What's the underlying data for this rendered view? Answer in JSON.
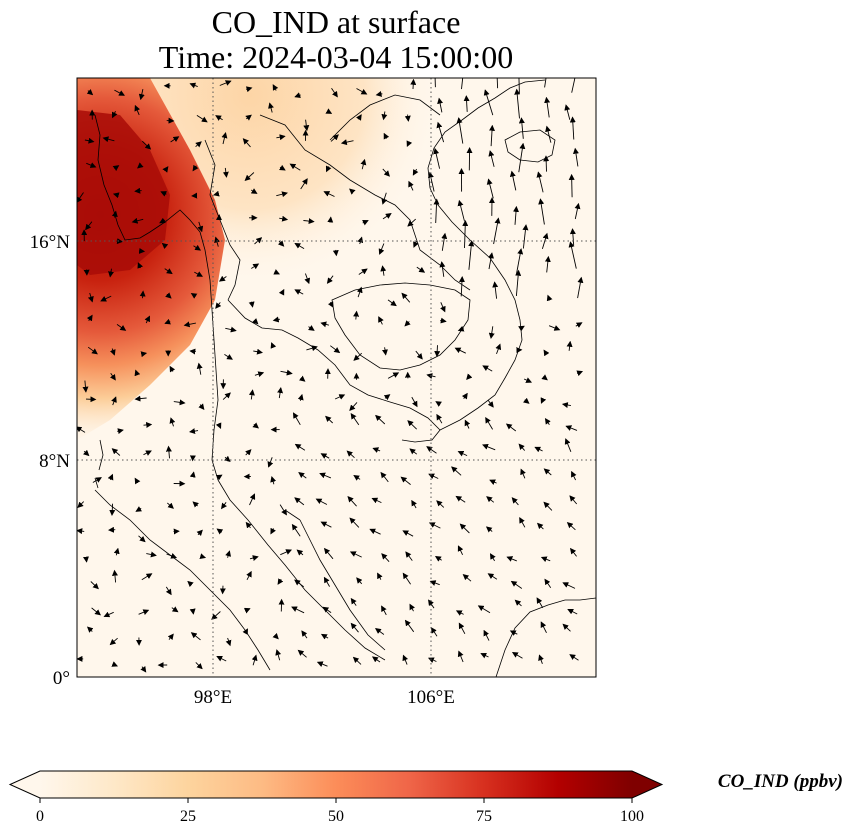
{
  "map": {
    "title_line1": "CO_IND at surface",
    "title_line2": "Time: 2024-03-04 15:00:00",
    "colormap": "OrRd",
    "colors": {
      "low": "#fff7ec",
      "mid": "#f9a365",
      "high": "#c1110a",
      "max": "#7f0000",
      "coastline": "#000000",
      "gridline": "#555555"
    },
    "extent": {
      "lon_min": 93,
      "lon_max": 112,
      "lat_min": 0,
      "lat_max": 22
    },
    "lat_ticks": [
      {
        "value": 16,
        "label": "16°N"
      },
      {
        "value": 8,
        "label": "8°N"
      },
      {
        "value": 0,
        "label": "0°"
      }
    ],
    "lon_ticks": [
      {
        "value": 98,
        "label": "98°E"
      },
      {
        "value": 106,
        "label": "106°E"
      }
    ],
    "gridlines": true,
    "gridline_style": "dotted"
  },
  "colorbar": {
    "label": "CO_IND (ppbv)",
    "min": 0,
    "max": 100,
    "extend": "both",
    "ticks": [
      {
        "value": 0,
        "label": "0"
      },
      {
        "value": 25,
        "label": "25"
      },
      {
        "value": 50,
        "label": "50"
      },
      {
        "value": 75,
        "label": "75"
      },
      {
        "value": 100,
        "label": "100"
      }
    ]
  }
}
